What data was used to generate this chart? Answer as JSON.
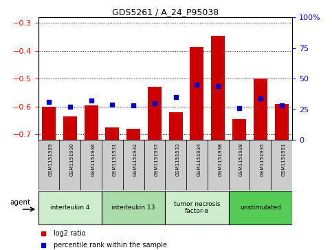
{
  "title": "GDS5261 / A_24_P95038",
  "samples": [
    "GSM1151929",
    "GSM1151930",
    "GSM1151936",
    "GSM1151931",
    "GSM1151932",
    "GSM1151937",
    "GSM1151933",
    "GSM1151934",
    "GSM1151938",
    "GSM1151928",
    "GSM1151935",
    "GSM1151951"
  ],
  "log2_ratio": [
    -0.6,
    -0.635,
    -0.595,
    -0.675,
    -0.68,
    -0.53,
    -0.62,
    -0.385,
    -0.345,
    -0.645,
    -0.5,
    -0.59
  ],
  "percentile_rank": [
    31,
    27,
    32,
    29,
    28,
    30,
    35,
    45,
    44,
    26,
    34,
    28
  ],
  "groups": [
    {
      "label": "interleukin 4",
      "start": 0,
      "end": 3,
      "color": "#cceecc"
    },
    {
      "label": "interleukin 13",
      "start": 3,
      "end": 6,
      "color": "#aaddaa"
    },
    {
      "label": "tumor necrosis\nfactor-α",
      "start": 6,
      "end": 9,
      "color": "#cceecc"
    },
    {
      "label": "unstimulated",
      "start": 9,
      "end": 12,
      "color": "#55cc55"
    }
  ],
  "ylim_left": [
    -0.72,
    -0.28
  ],
  "ylim_right": [
    0,
    100
  ],
  "yticks_left": [
    -0.7,
    -0.6,
    -0.5,
    -0.4,
    -0.3
  ],
  "yticks_right": [
    0,
    25,
    50,
    75,
    100
  ],
  "bar_color": "#cc0000",
  "dot_color": "#0000cc",
  "plot_bg": "#ffffff",
  "agent_label": "agent",
  "legend_log2": "log2 ratio",
  "legend_pct": "percentile rank within the sample",
  "sample_box_color": "#cccccc",
  "figsize": [
    4.83,
    3.63
  ],
  "dpi": 100
}
